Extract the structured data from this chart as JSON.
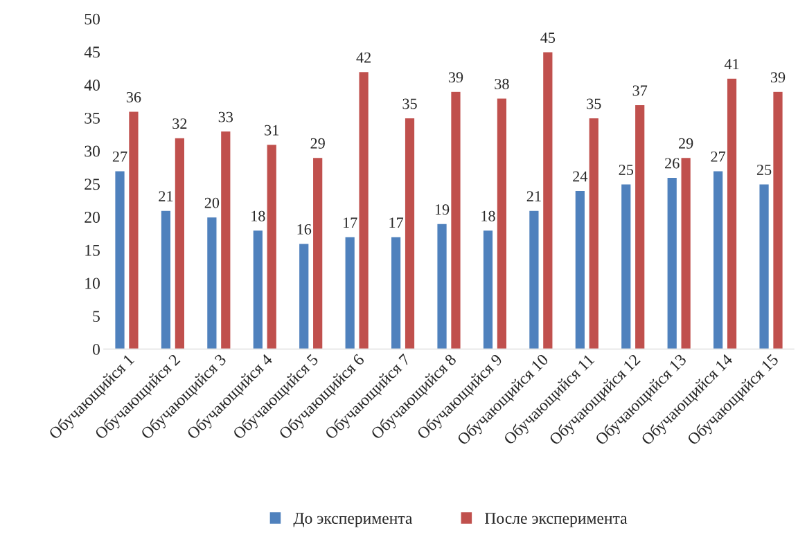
{
  "chart_data": {
    "type": "bar",
    "categories": [
      "Обучающийся 1",
      "Обучающийся 2",
      "Обучающийся 3",
      "Обучающийся 4",
      "Обучающийся 5",
      "Обучающийся 6",
      "Обучающийся 7",
      "Обучающийся 8",
      "Обучающийся 9",
      "Обучающийся 10",
      "Обучающийся 11",
      "Обучающийся 12",
      "Обучающийся 13",
      "Обучающийся 14",
      "Обучающийся 15"
    ],
    "series": [
      {
        "name": "До эксперимента",
        "color": "#4f81bd",
        "values": [
          27,
          21,
          20,
          18,
          16,
          17,
          17,
          19,
          18,
          21,
          24,
          25,
          26,
          27,
          25
        ]
      },
      {
        "name": "После эксперимента",
        "color": "#c0504d",
        "values": [
          36,
          32,
          33,
          31,
          29,
          42,
          35,
          39,
          38,
          45,
          35,
          37,
          29,
          41,
          39
        ]
      }
    ],
    "ylim": [
      0,
      50
    ],
    "yticks": [
      0,
      5,
      10,
      15,
      20,
      25,
      30,
      35,
      40,
      45,
      50
    ],
    "data_labels": true,
    "grid": false,
    "legend": "bottom"
  }
}
